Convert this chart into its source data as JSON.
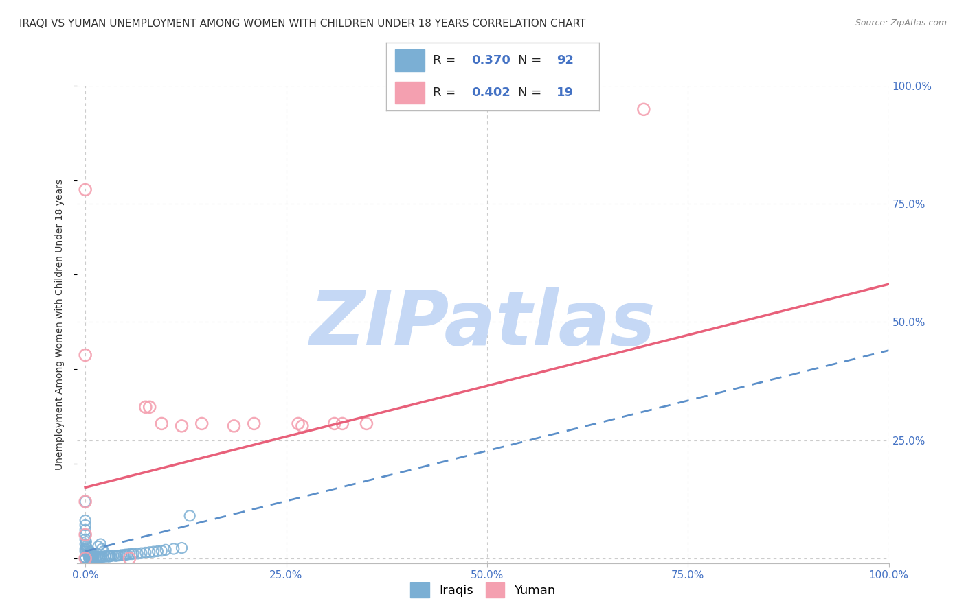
{
  "title": "IRAQI VS YUMAN UNEMPLOYMENT AMONG WOMEN WITH CHILDREN UNDER 18 YEARS CORRELATION CHART",
  "source": "Source: ZipAtlas.com",
  "ylabel": "Unemployment Among Women with Children Under 18 years",
  "watermark": "ZIPatlas",
  "legend_iraqis_label": "Iraqis",
  "legend_yuman_label": "Yuman",
  "R_iraqis": 0.37,
  "N_iraqis": 92,
  "R_yuman": 0.402,
  "N_yuman": 19,
  "iraqis_color": "#7bafd4",
  "yuman_color": "#f4a0b0",
  "iraqis_line_color": "#5b8fc9",
  "yuman_line_color": "#e8607a",
  "iraqis_line": {
    "x0": 0.0,
    "x1": 1.0,
    "y0": 0.015,
    "y1": 0.44
  },
  "yuman_line": {
    "x0": 0.0,
    "x1": 1.0,
    "y0": 0.15,
    "y1": 0.58
  },
  "xlim": [
    -0.01,
    1.0
  ],
  "ylim": [
    -0.01,
    1.0
  ],
  "xticks": [
    0.0,
    0.25,
    0.5,
    0.75,
    1.0
  ],
  "yticks": [
    0.0,
    0.25,
    0.5,
    0.75,
    1.0
  ],
  "xticklabels": [
    "0.0%",
    "25.0%",
    "50.0%",
    "75.0%",
    "100.0%"
  ],
  "yticklabels_right": [
    "",
    "25.0%",
    "50.0%",
    "75.0%",
    "100.0%"
  ],
  "grid_color": "#cccccc",
  "background_color": "#ffffff",
  "watermark_color": "#c5d8f5",
  "title_fontsize": 11,
  "label_fontsize": 10,
  "tick_fontsize": 11,
  "legend_fontsize": 13,
  "iraqis_x": [
    0.0,
    0.0,
    0.0,
    0.0,
    0.0,
    0.0,
    0.0,
    0.0,
    0.0,
    0.0,
    0.0,
    0.0,
    0.0,
    0.0,
    0.0,
    0.0,
    0.0,
    0.005,
    0.005,
    0.005,
    0.005,
    0.007,
    0.007,
    0.008,
    0.008,
    0.009,
    0.01,
    0.01,
    0.01,
    0.012,
    0.013,
    0.015,
    0.015,
    0.017,
    0.018,
    0.02,
    0.02,
    0.022,
    0.025,
    0.025,
    0.028,
    0.03,
    0.03,
    0.032,
    0.035,
    0.038,
    0.04,
    0.042,
    0.045,
    0.048,
    0.05,
    0.052,
    0.055,
    0.058,
    0.06,
    0.065,
    0.07,
    0.075,
    0.08,
    0.085,
    0.09,
    0.095,
    0.1,
    0.11,
    0.12,
    0.005,
    0.008,
    0.0,
    0.0,
    0.0,
    0.0,
    0.003,
    0.003,
    0.004,
    0.004,
    0.006,
    0.006,
    0.007,
    0.0,
    0.001,
    0.001,
    0.002,
    0.002,
    0.016,
    0.019,
    0.021,
    0.023,
    0.13,
    0.0,
    0.0,
    0.0,
    0.0
  ],
  "iraqis_y": [
    0.0,
    0.0,
    0.0,
    0.0,
    0.0,
    0.0,
    0.0,
    0.0,
    0.0,
    0.0,
    0.0,
    0.0,
    0.0,
    0.001,
    0.001,
    0.002,
    0.002,
    0.0,
    0.0,
    0.001,
    0.002,
    0.001,
    0.002,
    0.001,
    0.002,
    0.001,
    0.001,
    0.002,
    0.003,
    0.001,
    0.002,
    0.002,
    0.003,
    0.002,
    0.003,
    0.003,
    0.004,
    0.003,
    0.004,
    0.005,
    0.004,
    0.004,
    0.005,
    0.005,
    0.006,
    0.005,
    0.006,
    0.006,
    0.007,
    0.007,
    0.008,
    0.008,
    0.009,
    0.009,
    0.01,
    0.01,
    0.011,
    0.012,
    0.013,
    0.014,
    0.015,
    0.016,
    0.018,
    0.02,
    0.022,
    0.006,
    0.01,
    0.015,
    0.02,
    0.03,
    0.04,
    0.01,
    0.015,
    0.008,
    0.012,
    0.009,
    0.014,
    0.011,
    0.05,
    0.025,
    0.035,
    0.018,
    0.022,
    0.025,
    0.03,
    0.02,
    0.015,
    0.09,
    0.06,
    0.07,
    0.08,
    0.12
  ],
  "yuman_x": [
    0.0,
    0.0,
    0.0,
    0.0,
    0.0,
    0.055,
    0.075,
    0.08,
    0.095,
    0.12,
    0.145,
    0.185,
    0.21,
    0.265,
    0.27,
    0.31,
    0.32,
    0.35,
    0.695
  ],
  "yuman_y": [
    0.0,
    0.43,
    0.78,
    0.12,
    0.05,
    0.0,
    0.32,
    0.32,
    0.285,
    0.28,
    0.285,
    0.28,
    0.285,
    0.285,
    0.28,
    0.285,
    0.285,
    0.285,
    0.95
  ]
}
